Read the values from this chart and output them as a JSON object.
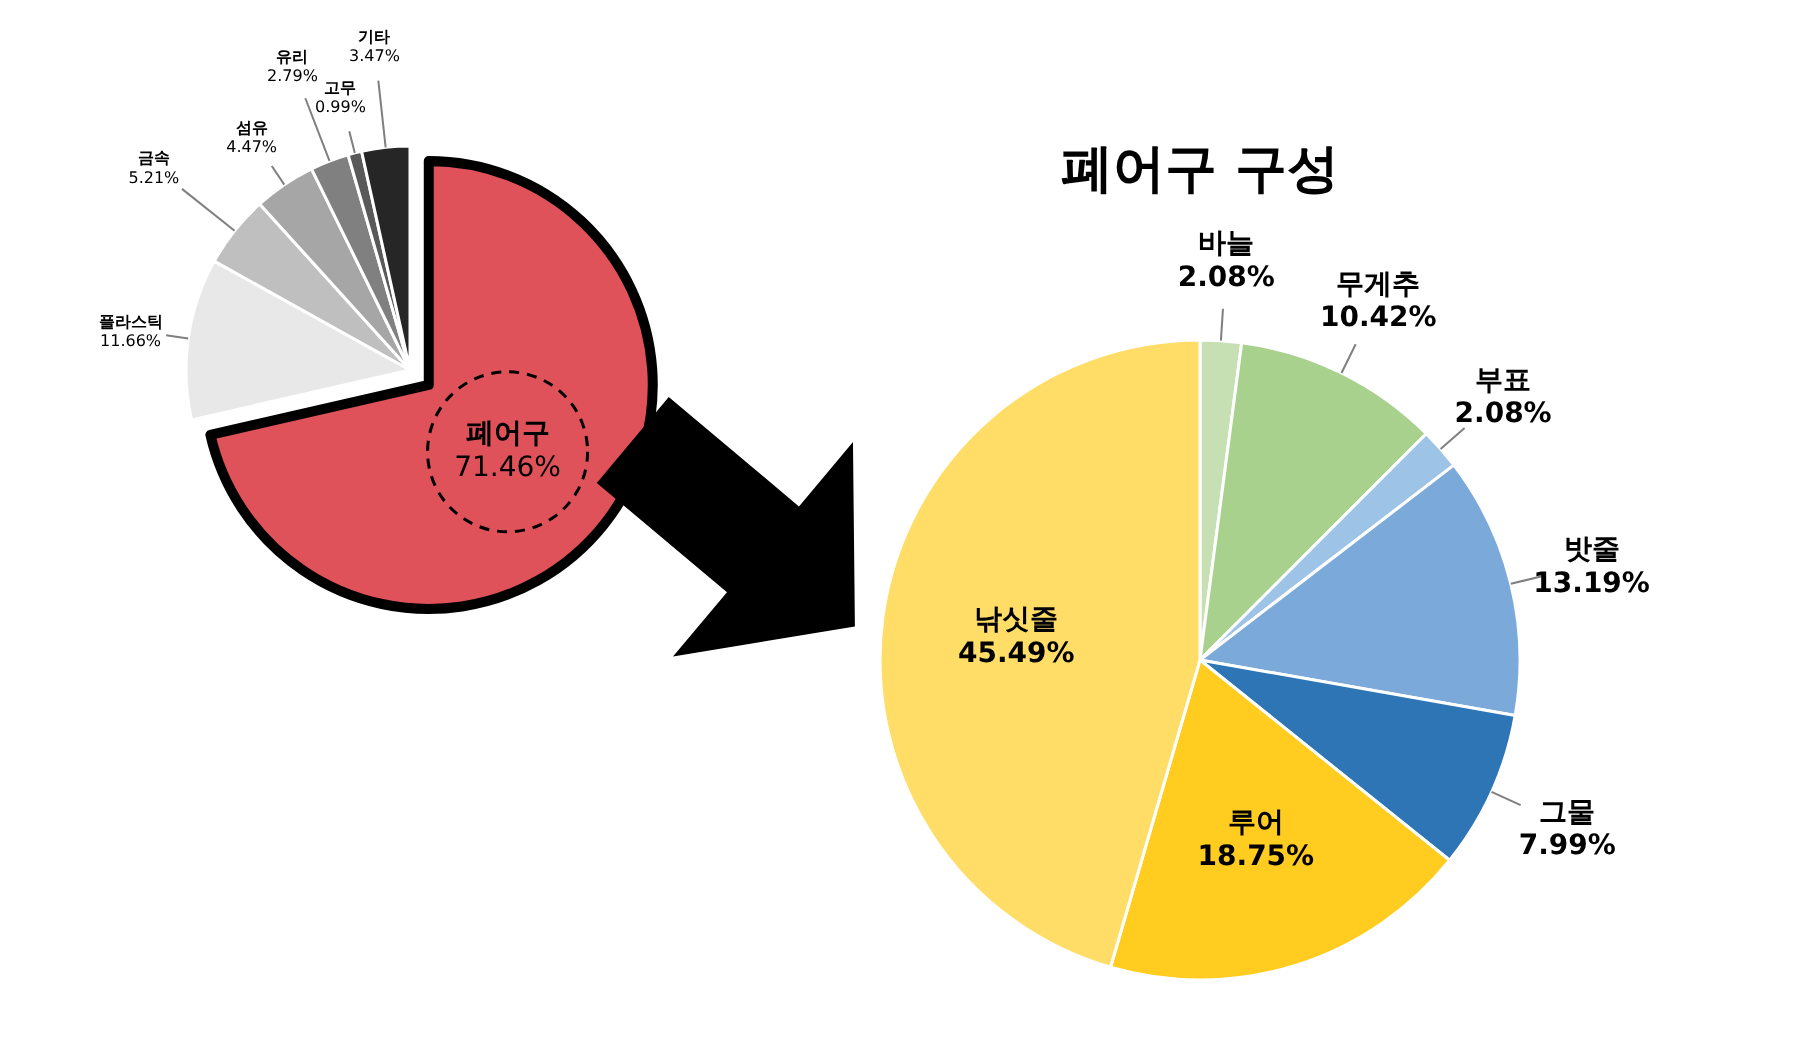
{
  "chart_data": [
    {
      "type": "pie",
      "categories": [
        "폐어구",
        "플라스틱",
        "금속",
        "섬유",
        "유리",
        "고무",
        "기타"
      ],
      "values": [
        71.46,
        11.66,
        5.21,
        4.47,
        2.79,
        0.99,
        3.47
      ],
      "value_labels": [
        "71.46%",
        "11.66%",
        "5.21%",
        "4.47%",
        "2.79%",
        "0.99%",
        "3.47%"
      ],
      "colors": [
        "#e0525a",
        "#e8e8e8",
        "#bfbfbf",
        "#a6a6a6",
        "#808080",
        "#595959",
        "#262626"
      ]
    },
    {
      "type": "pie",
      "title": "폐어구 구성",
      "categories": [
        "바늘",
        "무게추",
        "부표",
        "밧줄",
        "그물",
        "루어",
        "낚싯줄"
      ],
      "values": [
        2.08,
        10.42,
        2.08,
        13.19,
        7.99,
        18.75,
        45.49
      ],
      "value_labels": [
        "2.08%",
        "10.42%",
        "2.08%",
        "13.19%",
        "7.99%",
        "18.75%",
        "45.49%"
      ],
      "colors": [
        "#c6e0b4",
        "#a9d18e",
        "#9dc3e6",
        "#7aa9da",
        "#2e75b6",
        "#ffcc1f",
        "#ffdd66"
      ]
    }
  ]
}
